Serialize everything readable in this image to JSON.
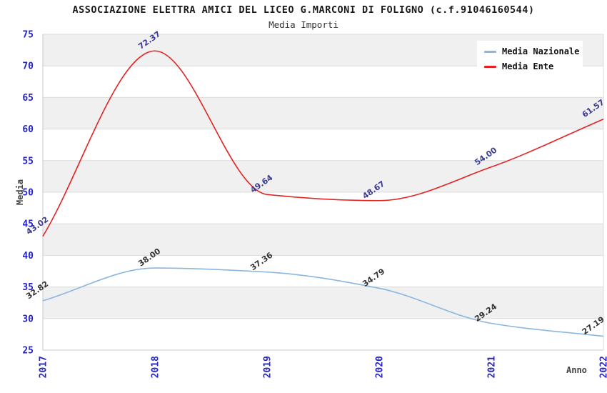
{
  "header": {
    "title": "ASSOCIAZIONE ELETTRA AMICI DEL LICEO G.MARCONI DI FOLIGNO (c.f.91046160544)",
    "subtitle": "Media Importi"
  },
  "chart_data": {
    "type": "line",
    "x": [
      "2017",
      "2018",
      "2019",
      "2020",
      "2021",
      "2022"
    ],
    "series": [
      {
        "name": "Media Nazionale",
        "color": "#8ab6e0",
        "label_color": "#333333",
        "values": [
          32.82,
          38.0,
          37.36,
          34.79,
          29.24,
          27.19
        ],
        "point_labels": [
          "32.82",
          "38.00",
          "37.36",
          "34.79",
          "29.24",
          "27.19"
        ]
      },
      {
        "name": "Media Ente",
        "color": "#e32222",
        "label_color": "#3a3a94",
        "values": [
          43.02,
          72.37,
          49.64,
          48.67,
          54.0,
          61.57
        ],
        "point_labels": [
          "43.02",
          "72.37",
          "49.64",
          "48.67",
          "54.00",
          "61.57"
        ]
      }
    ],
    "xlabel": "Anno",
    "ylabel": "Media",
    "ylim": [
      25,
      75
    ],
    "ytick_step": 5,
    "yticks": [
      25,
      30,
      35,
      40,
      45,
      50,
      55,
      60,
      65,
      70,
      75
    ],
    "legend_position": "top-right",
    "grid": "alternating-horizontal-bands",
    "band_color": "#f0f0f0",
    "grid_color": "#dcdcdc",
    "axis_color": "#c8c8c8",
    "tick_label_color": "#2424cc"
  }
}
